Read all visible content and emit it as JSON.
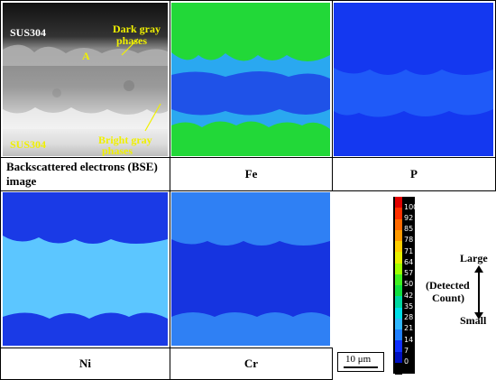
{
  "panels": {
    "bse": {
      "caption_line1": "Backscattered electrons (BSE)",
      "caption_line2": "image",
      "label_top": "SUS304",
      "label_bottom": "SUS304",
      "label_a": "A",
      "label_dark_1": "Dark gray",
      "label_dark_2": "phases",
      "label_bright_1": "Bright gray",
      "label_bright_2": "phases"
    },
    "fe": {
      "caption": "Fe"
    },
    "p": {
      "caption": "P"
    },
    "ni": {
      "caption": "Ni"
    },
    "cr": {
      "caption": "Cr"
    }
  },
  "scale_bar": {
    "label": "10 μm"
  },
  "colorbar": {
    "ticks": [
      "100",
      "92",
      "85",
      "78",
      "71",
      "64",
      "57",
      "50",
      "42",
      "35",
      "28",
      "21",
      "14",
      "7",
      "0"
    ],
    "colors": [
      "#e00000",
      "#ff3000",
      "#ff6a00",
      "#ff9a00",
      "#ffce00",
      "#e8f000",
      "#a0ff00",
      "#40f020",
      "#10e040",
      "#00d8a0",
      "#00e0e8",
      "#30b8ff",
      "#2080ff",
      "#1030ff",
      "#0010c0",
      "#000000"
    ],
    "large": "Large",
    "detected_1": "(Detected",
    "detected_2": "Count)",
    "small": "Small"
  }
}
